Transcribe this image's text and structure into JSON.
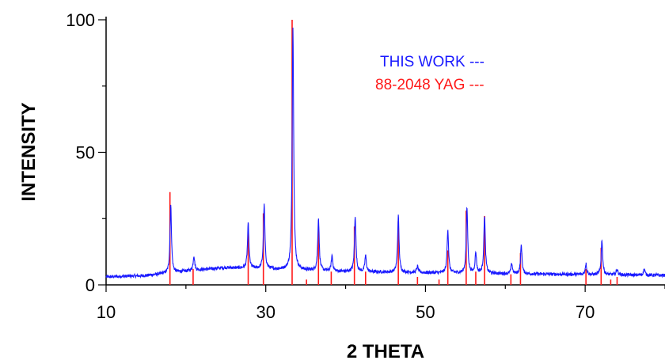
{
  "chart_data": {
    "type": "line",
    "xlabel": "2 THETA",
    "ylabel": "INTENSITY",
    "xlim": [
      10,
      80
    ],
    "ylim": [
      0,
      100
    ],
    "x_ticks": [
      10,
      30,
      50,
      70
    ],
    "y_ticks": [
      0,
      50,
      100
    ],
    "grid": false,
    "legend_position": "top-right",
    "series": [
      {
        "name": "THIS WORK ---",
        "color": "#1a1aff",
        "style": "line",
        "baseline": [
          [
            10,
            3
          ],
          [
            15,
            3.5
          ],
          [
            20,
            5.2
          ],
          [
            25,
            6.5
          ],
          [
            30,
            6
          ],
          [
            40,
            5
          ],
          [
            50,
            4.6
          ],
          [
            60,
            4.2
          ],
          [
            70,
            3.9
          ],
          [
            80,
            3.6
          ]
        ],
        "peaks": [
          {
            "x": 18.1,
            "y": 30
          },
          {
            "x": 21.0,
            "y": 11
          },
          {
            "x": 27.8,
            "y": 23
          },
          {
            "x": 29.8,
            "y": 30
          },
          {
            "x": 33.4,
            "y": 97
          },
          {
            "x": 36.6,
            "y": 25
          },
          {
            "x": 38.3,
            "y": 11
          },
          {
            "x": 41.2,
            "y": 26
          },
          {
            "x": 42.5,
            "y": 11
          },
          {
            "x": 46.6,
            "y": 26
          },
          {
            "x": 49.0,
            "y": 7
          },
          {
            "x": 52.8,
            "y": 21
          },
          {
            "x": 55.2,
            "y": 29
          },
          {
            "x": 56.3,
            "y": 12
          },
          {
            "x": 57.4,
            "y": 26
          },
          {
            "x": 60.8,
            "y": 8
          },
          {
            "x": 62.0,
            "y": 15
          },
          {
            "x": 70.1,
            "y": 8
          },
          {
            "x": 72.1,
            "y": 17
          },
          {
            "x": 74.0,
            "y": 6
          },
          {
            "x": 77.4,
            "y": 6
          }
        ]
      },
      {
        "name": "88-2048 YAG  ---",
        "color": "#ff1a1a",
        "style": "stick",
        "points": [
          [
            18.0,
            35
          ],
          [
            20.9,
            6
          ],
          [
            27.8,
            21
          ],
          [
            29.7,
            27
          ],
          [
            33.3,
            100
          ],
          [
            35.1,
            2
          ],
          [
            36.6,
            22
          ],
          [
            38.2,
            5
          ],
          [
            41.1,
            22
          ],
          [
            42.5,
            5
          ],
          [
            46.6,
            24
          ],
          [
            49.0,
            3
          ],
          [
            51.7,
            2
          ],
          [
            52.8,
            13
          ],
          [
            55.1,
            28
          ],
          [
            56.3,
            5
          ],
          [
            57.4,
            26
          ],
          [
            60.7,
            4
          ],
          [
            61.9,
            12
          ],
          [
            70.1,
            6
          ],
          [
            72.0,
            14
          ],
          [
            73.2,
            2
          ],
          [
            74.0,
            3
          ]
        ]
      }
    ]
  }
}
